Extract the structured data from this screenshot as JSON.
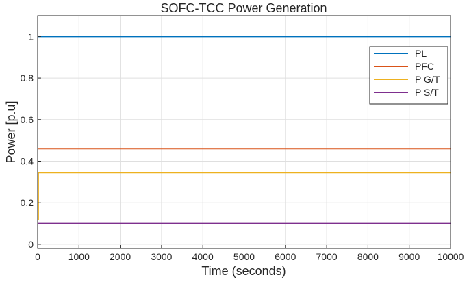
{
  "chart_data": {
    "type": "line",
    "title": "SOFC-TCC Power Generation",
    "xlabel": "Time (seconds)",
    "ylabel": "Power [p.u]",
    "xlim": [
      0,
      10000
    ],
    "ylim": [
      -0.02,
      1.1
    ],
    "xticks": [
      0,
      1000,
      2000,
      3000,
      4000,
      5000,
      6000,
      7000,
      8000,
      9000,
      10000
    ],
    "yticks": [
      0,
      0.2,
      0.4,
      0.6,
      0.8,
      1
    ],
    "grid": true,
    "legend_position": "top-right",
    "series": [
      {
        "name": "PL",
        "color": "#0072BD",
        "x": [
          0,
          10000
        ],
        "y": [
          1.0,
          1.0
        ]
      },
      {
        "name": "PFC",
        "color": "#D95319",
        "x": [
          0,
          10000
        ],
        "y": [
          0.46,
          0.46
        ]
      },
      {
        "name": "P G/T",
        "color": "#EDB120",
        "x": [
          0,
          15,
          15,
          10000
        ],
        "y": [
          0.12,
          0.12,
          0.345,
          0.345
        ]
      },
      {
        "name": "P S/T",
        "color": "#7E2F8E",
        "x": [
          0,
          10000
        ],
        "y": [
          0.1,
          0.1
        ]
      }
    ]
  }
}
